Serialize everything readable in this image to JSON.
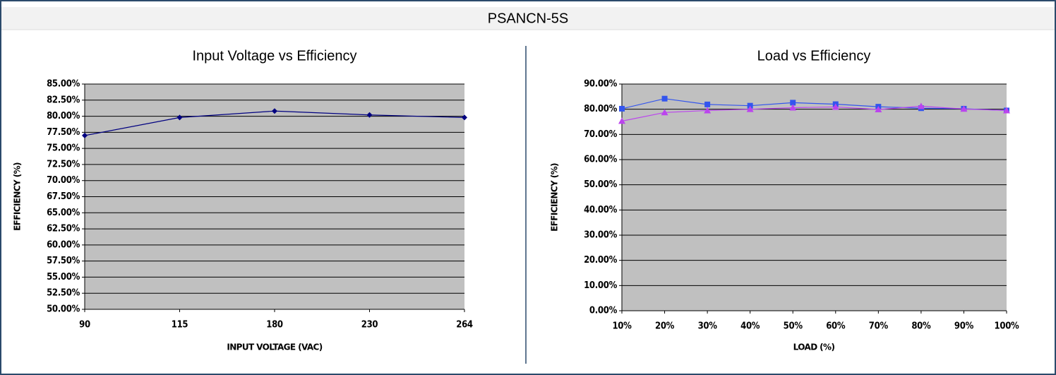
{
  "title": "PSANCN-5S",
  "chart_data": [
    {
      "type": "line",
      "title": "Input Voltage vs Efficiency",
      "x_label": "INPUT VOLTAGE (VAC)",
      "y_label": "EFFICIENCY (%)",
      "categories": [
        "90",
        "115",
        "180",
        "230",
        "264"
      ],
      "series": [
        {
          "color": "#000080",
          "marker": "diamond",
          "values": [
            77.0,
            79.8,
            80.8,
            80.2,
            79.8
          ]
        }
      ],
      "ylim": [
        50,
        85
      ],
      "yticks": [
        {
          "value": 50,
          "label": "50.00%"
        },
        {
          "value": 52.5,
          "label": "52.50%"
        },
        {
          "value": 55,
          "label": "55.00%"
        },
        {
          "value": 57.5,
          "label": "57.50%"
        },
        {
          "value": 60,
          "label": "60.00%"
        },
        {
          "value": 62.5,
          "label": "62.50%"
        },
        {
          "value": 65,
          "label": "65.00%"
        },
        {
          "value": 67.5,
          "label": "67.50%"
        },
        {
          "value": 70,
          "label": "70.00%"
        },
        {
          "value": 72.5,
          "label": "72.50%"
        },
        {
          "value": 75,
          "label": "75.00%"
        },
        {
          "value": 77.5,
          "label": "77.50%"
        },
        {
          "value": 80,
          "label": "80.00%"
        },
        {
          "value": 82.5,
          "label": "82.50%"
        },
        {
          "value": 85,
          "label": "85.00%"
        }
      ],
      "grid": true
    },
    {
      "type": "line",
      "title": "Load vs Efficiency",
      "x_label": "LOAD (%)",
      "y_label": "EFFICIENCY (%)",
      "categories": [
        "10%",
        "20%",
        "30%",
        "40%",
        "50%",
        "60%",
        "70%",
        "80%",
        "90%",
        "100%"
      ],
      "series": [
        {
          "color": "#3355ee",
          "marker": "square",
          "values": [
            80.2,
            84.2,
            81.9,
            81.4,
            82.6,
            82.0,
            81.0,
            80.4,
            80.2,
            79.5
          ]
        },
        {
          "color": "#bb44ee",
          "marker": "triangle",
          "values": [
            75.3,
            78.7,
            79.5,
            80.0,
            80.6,
            80.9,
            79.9,
            81.2,
            80.1,
            79.5
          ]
        }
      ],
      "ylim": [
        0,
        90
      ],
      "yticks": [
        {
          "value": 0,
          "label": "0.00%"
        },
        {
          "value": 10,
          "label": "10.00%"
        },
        {
          "value": 20,
          "label": "20.00%"
        },
        {
          "value": 30,
          "label": "30.00%"
        },
        {
          "value": 40,
          "label": "40.00%"
        },
        {
          "value": 50,
          "label": "50.00%"
        },
        {
          "value": 60,
          "label": "60.00%"
        },
        {
          "value": 70,
          "label": "70.00%"
        },
        {
          "value": 80,
          "label": "80.00%"
        },
        {
          "value": 90,
          "label": "90.00%"
        }
      ],
      "grid": true
    }
  ]
}
